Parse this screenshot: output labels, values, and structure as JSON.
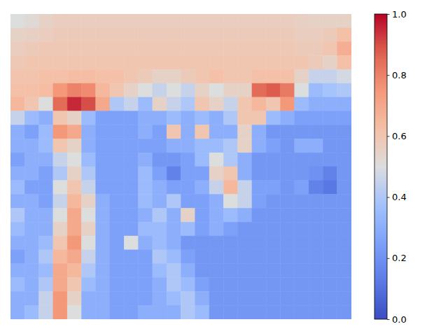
{
  "chart_data": {
    "type": "heatmap",
    "tick_labels": false,
    "colorbar_range": [
      0,
      1
    ],
    "colorbar_ticks": [
      {
        "value": 0,
        "label": "0.0"
      },
      {
        "value": 0.2,
        "label": "0.2"
      },
      {
        "value": 0.4,
        "label": "0.4"
      },
      {
        "value": 0.6,
        "label": "0.6"
      },
      {
        "value": 0.8,
        "label": "0.8"
      },
      {
        "value": 1,
        "label": "1.0"
      }
    ],
    "values": [
      [
        0.5,
        0.52,
        0.55,
        0.57,
        0.57,
        0.57,
        0.57,
        0.57,
        0.57,
        0.57,
        0.57,
        0.57,
        0.57,
        0.57,
        0.57,
        0.57,
        0.57,
        0.57,
        0.57,
        0.57,
        0.56,
        0.55,
        0.55,
        0.55
      ],
      [
        0.55,
        0.56,
        0.57,
        0.58,
        0.58,
        0.58,
        0.58,
        0.58,
        0.58,
        0.58,
        0.58,
        0.58,
        0.58,
        0.58,
        0.58,
        0.58,
        0.58,
        0.58,
        0.58,
        0.58,
        0.57,
        0.57,
        0.58,
        0.62
      ],
      [
        0.57,
        0.58,
        0.59,
        0.59,
        0.59,
        0.59,
        0.59,
        0.59,
        0.59,
        0.59,
        0.59,
        0.59,
        0.59,
        0.59,
        0.59,
        0.59,
        0.59,
        0.59,
        0.59,
        0.59,
        0.58,
        0.58,
        0.6,
        0.68
      ],
      [
        0.59,
        0.6,
        0.6,
        0.6,
        0.6,
        0.6,
        0.6,
        0.6,
        0.6,
        0.6,
        0.6,
        0.6,
        0.6,
        0.6,
        0.6,
        0.6,
        0.6,
        0.6,
        0.6,
        0.6,
        0.6,
        0.58,
        0.55,
        0.62
      ],
      [
        0.61,
        0.61,
        0.62,
        0.62,
        0.63,
        0.63,
        0.62,
        0.62,
        0.6,
        0.58,
        0.55,
        0.55,
        0.58,
        0.6,
        0.62,
        0.6,
        0.6,
        0.62,
        0.62,
        0.62,
        0.55,
        0.45,
        0.45,
        0.48
      ],
      [
        0.62,
        0.62,
        0.63,
        0.75,
        0.8,
        0.78,
        0.65,
        0.6,
        0.55,
        0.5,
        0.45,
        0.5,
        0.45,
        0.55,
        0.5,
        0.55,
        0.55,
        0.85,
        0.88,
        0.82,
        0.5,
        0.35,
        0.38,
        0.4
      ],
      [
        0.65,
        0.6,
        0.5,
        0.85,
        0.95,
        0.9,
        0.7,
        0.4,
        0.45,
        0.35,
        0.55,
        0.45,
        0.4,
        0.6,
        0.55,
        0.45,
        0.6,
        0.65,
        0.6,
        0.75,
        0.35,
        0.3,
        0.3,
        0.3
      ],
      [
        0.45,
        0.35,
        0.3,
        0.6,
        0.55,
        0.35,
        0.25,
        0.25,
        0.25,
        0.3,
        0.3,
        0.35,
        0.3,
        0.35,
        0.3,
        0.4,
        0.6,
        0.6,
        0.35,
        0.3,
        0.25,
        0.25,
        0.25,
        0.25
      ],
      [
        0.3,
        0.25,
        0.35,
        0.75,
        0.7,
        0.3,
        0.25,
        0.25,
        0.25,
        0.3,
        0.25,
        0.6,
        0.3,
        0.6,
        0.3,
        0.3,
        0.55,
        0.3,
        0.22,
        0.22,
        0.22,
        0.22,
        0.22,
        0.22
      ],
      [
        0.3,
        0.3,
        0.35,
        0.6,
        0.55,
        0.3,
        0.25,
        0.25,
        0.25,
        0.25,
        0.25,
        0.3,
        0.3,
        0.35,
        0.35,
        0.4,
        0.55,
        0.3,
        0.25,
        0.22,
        0.3,
        0.3,
        0.22,
        0.22
      ],
      [
        0.25,
        0.3,
        0.3,
        0.45,
        0.5,
        0.35,
        0.25,
        0.25,
        0.25,
        0.3,
        0.22,
        0.22,
        0.25,
        0.35,
        0.5,
        0.4,
        0.3,
        0.22,
        0.22,
        0.22,
        0.22,
        0.22,
        0.22,
        0.22
      ],
      [
        0.3,
        0.3,
        0.25,
        0.4,
        0.55,
        0.4,
        0.25,
        0.25,
        0.25,
        0.35,
        0.25,
        0.15,
        0.25,
        0.25,
        0.55,
        0.6,
        0.3,
        0.22,
        0.22,
        0.22,
        0.22,
        0.2,
        0.15,
        0.22
      ],
      [
        0.35,
        0.25,
        0.25,
        0.5,
        0.6,
        0.45,
        0.25,
        0.25,
        0.25,
        0.35,
        0.3,
        0.25,
        0.25,
        0.3,
        0.45,
        0.65,
        0.45,
        0.25,
        0.25,
        0.22,
        0.25,
        0.15,
        0.12,
        0.22
      ],
      [
        0.3,
        0.3,
        0.25,
        0.45,
        0.65,
        0.55,
        0.3,
        0.25,
        0.25,
        0.35,
        0.3,
        0.4,
        0.25,
        0.25,
        0.3,
        0.5,
        0.45,
        0.25,
        0.22,
        0.22,
        0.22,
        0.22,
        0.22,
        0.22
      ],
      [
        0.4,
        0.3,
        0.3,
        0.5,
        0.7,
        0.5,
        0.3,
        0.25,
        0.25,
        0.3,
        0.4,
        0.3,
        0.55,
        0.25,
        0.3,
        0.35,
        0.3,
        0.22,
        0.22,
        0.22,
        0.22,
        0.22,
        0.22,
        0.22
      ],
      [
        0.35,
        0.3,
        0.3,
        0.55,
        0.7,
        0.55,
        0.3,
        0.25,
        0.25,
        0.35,
        0.35,
        0.3,
        0.35,
        0.25,
        0.3,
        0.25,
        0.22,
        0.22,
        0.22,
        0.22,
        0.22,
        0.22,
        0.22,
        0.22
      ],
      [
        0.3,
        0.3,
        0.35,
        0.6,
        0.75,
        0.5,
        0.3,
        0.25,
        0.5,
        0.3,
        0.35,
        0.3,
        0.22,
        0.22,
        0.22,
        0.22,
        0.22,
        0.22,
        0.22,
        0.22,
        0.22,
        0.22,
        0.22,
        0.22
      ],
      [
        0.25,
        0.3,
        0.4,
        0.65,
        0.7,
        0.45,
        0.3,
        0.25,
        0.25,
        0.25,
        0.4,
        0.35,
        0.25,
        0.22,
        0.22,
        0.22,
        0.22,
        0.22,
        0.22,
        0.22,
        0.22,
        0.22,
        0.22,
        0.22
      ],
      [
        0.3,
        0.3,
        0.35,
        0.7,
        0.65,
        0.4,
        0.3,
        0.25,
        0.25,
        0.25,
        0.35,
        0.4,
        0.3,
        0.22,
        0.22,
        0.22,
        0.22,
        0.22,
        0.22,
        0.22,
        0.22,
        0.22,
        0.22,
        0.22
      ],
      [
        0.35,
        0.3,
        0.4,
        0.7,
        0.6,
        0.35,
        0.3,
        0.25,
        0.25,
        0.25,
        0.3,
        0.4,
        0.35,
        0.25,
        0.22,
        0.22,
        0.22,
        0.22,
        0.22,
        0.22,
        0.22,
        0.22,
        0.22,
        0.22
      ],
      [
        0.3,
        0.3,
        0.45,
        0.75,
        0.55,
        0.3,
        0.3,
        0.25,
        0.25,
        0.25,
        0.3,
        0.35,
        0.4,
        0.3,
        0.22,
        0.22,
        0.22,
        0.22,
        0.22,
        0.22,
        0.22,
        0.22,
        0.22,
        0.22
      ],
      [
        0.3,
        0.35,
        0.45,
        0.75,
        0.5,
        0.3,
        0.3,
        0.25,
        0.25,
        0.3,
        0.3,
        0.3,
        0.4,
        0.35,
        0.22,
        0.22,
        0.22,
        0.22,
        0.22,
        0.22,
        0.22,
        0.22,
        0.22,
        0.22
      ]
    ]
  }
}
